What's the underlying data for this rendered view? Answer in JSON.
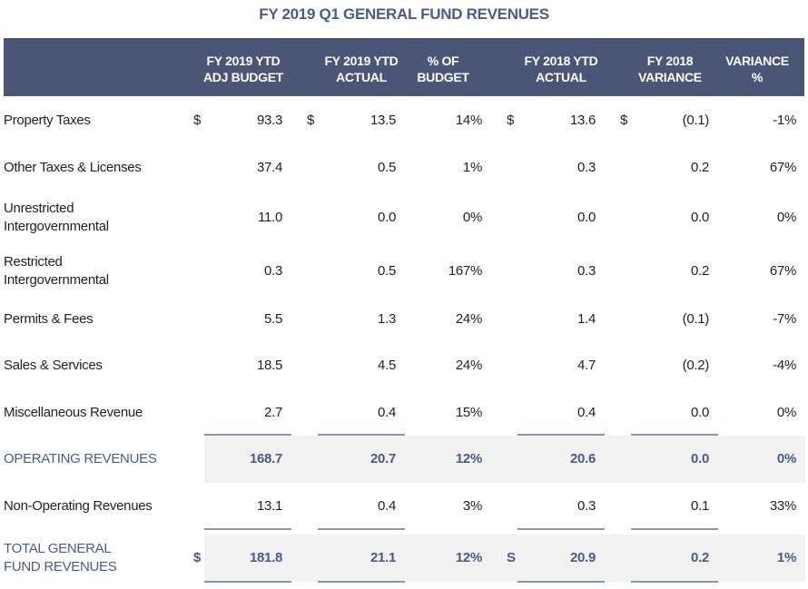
{
  "header": {
    "title": "FY 2019 Q1 GENERAL FUND REVENUES"
  },
  "table": {
    "columns": [
      [
        "FY 2019 YTD",
        "ADJ BUDGET"
      ],
      [
        "FY 2019 YTD",
        "ACTUAL"
      ],
      [
        "% OF",
        "BUDGET"
      ],
      [
        "FY 2018 YTD",
        "ACTUAL"
      ],
      [
        "FY 2018",
        "VARIANCE"
      ],
      [
        "VARIANCE",
        "%"
      ]
    ],
    "rows": [
      {
        "label": [
          "Property Taxes"
        ],
        "cells": [
          {
            "sign": "$",
            "value": "93.3"
          },
          {
            "sign": "$",
            "value": "13.5"
          },
          {
            "value": "14%"
          },
          {
            "sign": "$",
            "value": "13.6"
          },
          {
            "sign": "$",
            "value": "(0.1)"
          },
          {
            "value": "-1%"
          }
        ]
      },
      {
        "label": [
          "Other Taxes & Licenses"
        ],
        "cells": [
          {
            "value": "37.4"
          },
          {
            "value": "0.5"
          },
          {
            "value": "1%"
          },
          {
            "value": "0.3"
          },
          {
            "value": "0.2"
          },
          {
            "value": "67%"
          }
        ]
      },
      {
        "label": [
          "Unrestricted",
          "Intergovernmental"
        ],
        "cells": [
          {
            "value": "11.0"
          },
          {
            "value": "0.0"
          },
          {
            "value": "0%"
          },
          {
            "value": "0.0"
          },
          {
            "value": "0.0"
          },
          {
            "value": "0%"
          }
        ]
      },
      {
        "label": [
          "Restricted",
          "Intergovernmental"
        ],
        "cells": [
          {
            "value": "0.3"
          },
          {
            "value": "0.5"
          },
          {
            "value": "167%"
          },
          {
            "value": "0.3"
          },
          {
            "value": "0.2"
          },
          {
            "value": "67%"
          }
        ]
      },
      {
        "label": [
          "Permits & Fees"
        ],
        "cells": [
          {
            "value": "5.5"
          },
          {
            "value": "1.3"
          },
          {
            "value": "24%"
          },
          {
            "value": "1.4"
          },
          {
            "value": "(0.1)"
          },
          {
            "value": "-7%"
          }
        ]
      },
      {
        "label": [
          "Sales & Services"
        ],
        "cells": [
          {
            "value": "18.5"
          },
          {
            "value": "4.5"
          },
          {
            "value": "24%"
          },
          {
            "value": "4.7"
          },
          {
            "value": "(0.2)"
          },
          {
            "value": "-4%"
          }
        ]
      },
      {
        "label": [
          "Miscellaneous Revenue"
        ],
        "cells": [
          {
            "value": "2.7"
          },
          {
            "value": "0.4"
          },
          {
            "value": "15%"
          },
          {
            "value": "0.4"
          },
          {
            "value": "0.0"
          },
          {
            "value": "0%"
          }
        ]
      },
      {
        "label": [
          "OPERATING REVENUES"
        ],
        "total": true,
        "cells": [
          {
            "value": "168.7"
          },
          {
            "value": "20.7"
          },
          {
            "value": "12%"
          },
          {
            "value": "20.6"
          },
          {
            "value": "0.0"
          },
          {
            "value": "0%"
          }
        ]
      },
      {
        "label": [
          "Non-Operating Revenues"
        ],
        "cells": [
          {
            "value": "13.1"
          },
          {
            "value": "0.4"
          },
          {
            "value": "3%"
          },
          {
            "value": "0.3"
          },
          {
            "value": "0.1"
          },
          {
            "value": "33%"
          }
        ]
      },
      {
        "label": [
          "TOTAL GENERAL",
          "FUND REVENUES"
        ],
        "total": true,
        "cells": [
          {
            "sign": "$",
            "value": "181.8"
          },
          {
            "value": "21.1"
          },
          {
            "value": "12%"
          },
          {
            "sign": "S",
            "value": "20.9"
          },
          {
            "value": "0.2"
          },
          {
            "value": "1%"
          }
        ]
      }
    ]
  }
}
